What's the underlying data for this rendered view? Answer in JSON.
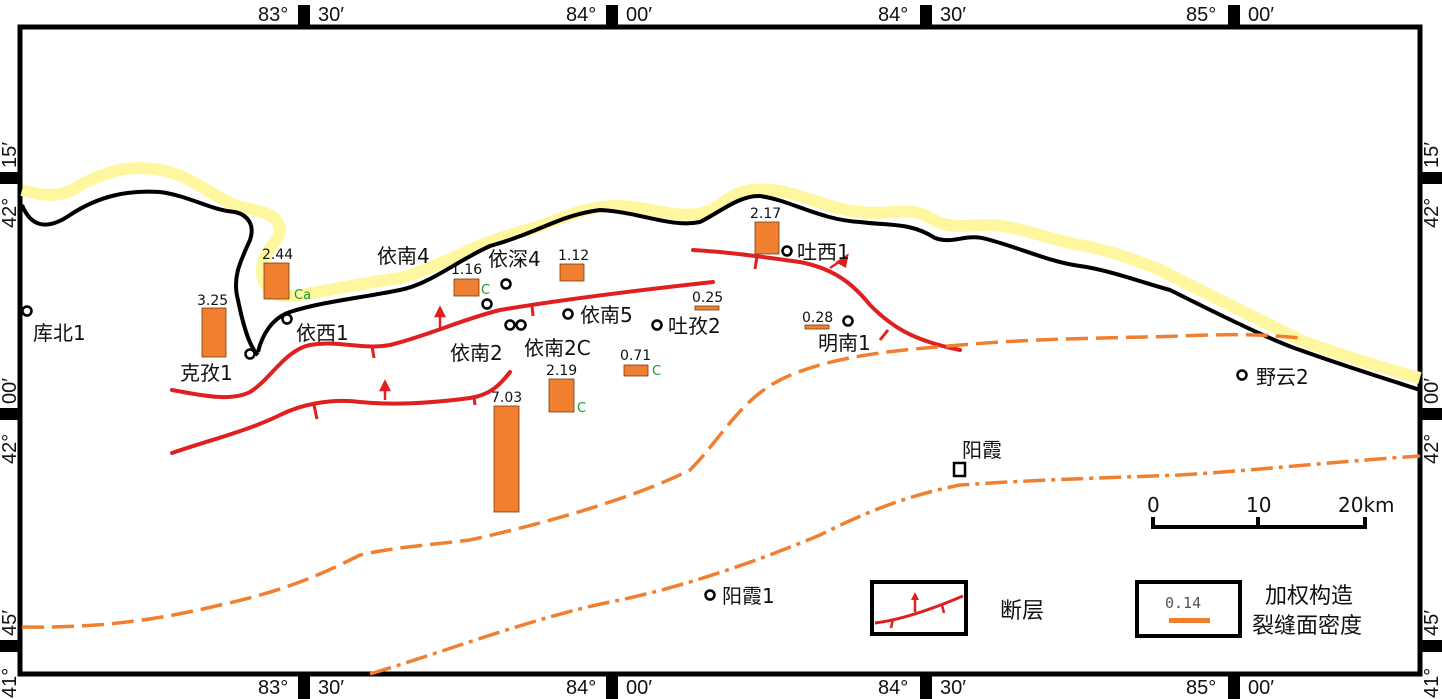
{
  "map": {
    "colors": {
      "frame": "#000000",
      "coast_fill": "#fff7a0",
      "fault": "#e02020",
      "dash_line": "#f08030",
      "density_bar": "#f08030",
      "lithology_code": "#1a9a2a"
    },
    "ticks": {
      "top": [
        {
          "deg": "83°",
          "min": "30′"
        },
        {
          "deg": "84°",
          "min": "00′"
        },
        {
          "deg": "84°",
          "min": "30′"
        },
        {
          "deg": "85°",
          "min": "00′"
        }
      ],
      "bottom": [
        {
          "deg": "83°",
          "min": "30′"
        },
        {
          "deg": "84°",
          "min": "00′"
        },
        {
          "deg": "84°",
          "min": "30′"
        },
        {
          "deg": "85°",
          "min": "00′"
        }
      ],
      "left": [
        {
          "deg": "42°",
          "min": "15′"
        },
        {
          "deg": "42°",
          "min": "00′"
        },
        {
          "deg": "41°",
          "min": "45′"
        }
      ],
      "right": [
        {
          "deg": "42°",
          "min": "15′"
        },
        {
          "deg": "42°",
          "min": "00′"
        },
        {
          "deg": "41°",
          "min": "45′"
        }
      ]
    },
    "wells": [
      {
        "id": "kubei1",
        "name": "库北1"
      },
      {
        "id": "kezi1",
        "name": "克孜1"
      },
      {
        "id": "yixi1",
        "name": "依西1"
      },
      {
        "id": "yinan4",
        "name": "依南4"
      },
      {
        "id": "yishen4",
        "name": "依深4"
      },
      {
        "id": "yinan2",
        "name": "依南2"
      },
      {
        "id": "yinan2c",
        "name": "依南2C"
      },
      {
        "id": "yinan5",
        "name": "依南5"
      },
      {
        "id": "tuzi2",
        "name": "吐孜2"
      },
      {
        "id": "tuxi1",
        "name": "吐西1"
      },
      {
        "id": "mingnan1",
        "name": "明南1"
      },
      {
        "id": "yeyun2",
        "name": "野云2"
      },
      {
        "id": "yangxia1",
        "name": "阳霞1"
      }
    ],
    "town": {
      "name": "阳霞"
    },
    "density_bars": [
      {
        "id": "b325",
        "value": "3.25",
        "code": ""
      },
      {
        "id": "b244",
        "value": "2.44",
        "code": "Ca"
      },
      {
        "id": "b116",
        "value": "1.16",
        "code": "C"
      },
      {
        "id": "b112",
        "value": "1.12",
        "code": ""
      },
      {
        "id": "b217",
        "value": "2.17",
        "code": ""
      },
      {
        "id": "b025",
        "value": "0.25",
        "code": ""
      },
      {
        "id": "b028",
        "value": "0.28",
        "code": ""
      },
      {
        "id": "b071",
        "value": "0.71",
        "code": "C"
      },
      {
        "id": "b219",
        "value": "2.19",
        "code": "C"
      },
      {
        "id": "b703",
        "value": "7.03",
        "code": ""
      }
    ],
    "scale": {
      "labels": [
        "0",
        "10",
        "20km"
      ]
    },
    "legend": {
      "fault_label": "断层",
      "density_sample_value": "0.14",
      "density_label_line1": "加权构造",
      "density_label_line2": "裂缝面密度"
    }
  }
}
